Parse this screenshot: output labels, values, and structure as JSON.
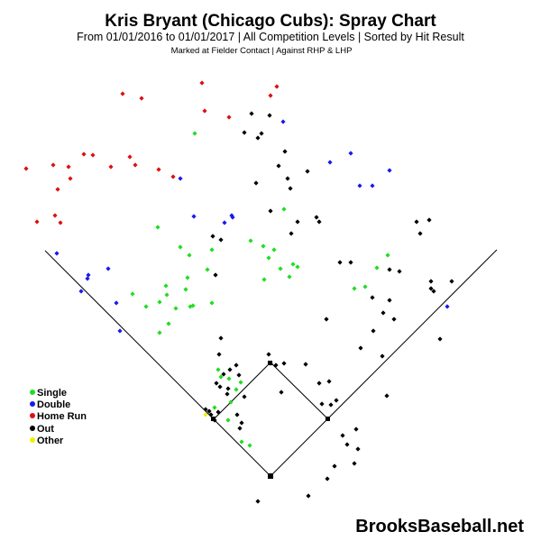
{
  "chart_data": {
    "type": "scatter",
    "title": "Kris Bryant (Chicago Cubs): Spray Chart",
    "subtitle": "From 01/01/2016 to 01/01/2017 | All Competition Levels | Sorted by Hit Result",
    "subtitle2": "Marked at Fielder Contact |   Against RHP & LHP",
    "watermark": "BrooksBaseball.net",
    "legend_placement": "bottom-left",
    "legend": [
      {
        "label": "Single",
        "color": "#22dd22"
      },
      {
        "label": "Double",
        "color": "#1a1aee"
      },
      {
        "label": "Home Run",
        "color": "#dd1111"
      },
      {
        "label": "Out",
        "color": "#000000"
      },
      {
        "label": "Other",
        "color": "#f0f000"
      }
    ],
    "grid": false,
    "series": [
      {
        "name": "Single",
        "color": "#22dd22",
        "points": [
          [
            216,
            148
          ],
          [
            315,
            232
          ],
          [
            175,
            252
          ],
          [
            200,
            274
          ],
          [
            278,
            267
          ],
          [
            292,
            273
          ],
          [
            304,
            277
          ],
          [
            235,
            277
          ],
          [
            210,
            283
          ],
          [
            298,
            286
          ],
          [
            325,
            293
          ],
          [
            311,
            298
          ],
          [
            330,
            296
          ],
          [
            230,
            299
          ],
          [
            208,
            308
          ],
          [
            293,
            310
          ],
          [
            321,
            307
          ],
          [
            184,
            317
          ],
          [
            147,
            326
          ],
          [
            185,
            327
          ],
          [
            206,
            321
          ],
          [
            177,
            335
          ],
          [
            162,
            340
          ],
          [
            195,
            342
          ],
          [
            211,
            340
          ],
          [
            214,
            339
          ],
          [
            235,
            336
          ],
          [
            187,
            359
          ],
          [
            177,
            369
          ],
          [
            418,
            297
          ],
          [
            405,
            318
          ],
          [
            393,
            320
          ],
          [
            430,
            283
          ],
          [
            242,
            410
          ],
          [
            245,
            418
          ],
          [
            254,
            420
          ],
          [
            267,
            424
          ],
          [
            262,
            432
          ],
          [
            256,
            446
          ],
          [
            238,
            452
          ],
          [
            253,
            466
          ],
          [
            234,
            460
          ],
          [
            268,
            490
          ],
          [
            277,
            494
          ]
        ]
      },
      {
        "name": "Double",
        "color": "#1a1aee",
        "points": [
          [
            314,
            135
          ],
          [
            200,
            198
          ],
          [
            215,
            240
          ],
          [
            249,
            247
          ],
          [
            257,
            239
          ],
          [
            258,
            241
          ],
          [
            366,
            180
          ],
          [
            389,
            170
          ],
          [
            432,
            189
          ],
          [
            399,
            206
          ],
          [
            413,
            206
          ],
          [
            63,
            281
          ],
          [
            98,
            305
          ],
          [
            97,
            309
          ],
          [
            120,
            298
          ],
          [
            90,
            323
          ],
          [
            129,
            336
          ],
          [
            133,
            367
          ],
          [
            496,
            340
          ]
        ]
      },
      {
        "name": "Home Run",
        "color": "#dd1111",
        "points": [
          [
            224,
            92
          ],
          [
            307,
            96
          ],
          [
            300,
            106
          ],
          [
            136,
            104
          ],
          [
            157,
            109
          ],
          [
            227,
            123
          ],
          [
            254,
            130
          ],
          [
            29,
            187
          ],
          [
            59,
            183
          ],
          [
            76,
            185
          ],
          [
            78,
            198
          ],
          [
            93,
            171
          ],
          [
            103,
            172
          ],
          [
            123,
            185
          ],
          [
            144,
            174
          ],
          [
            150,
            183
          ],
          [
            176,
            188
          ],
          [
            192,
            196
          ],
          [
            64,
            210
          ],
          [
            61,
            239
          ],
          [
            41,
            246
          ],
          [
            67,
            247
          ]
        ]
      },
      {
        "name": "Out",
        "color": "#000000",
        "points": [
          [
            279,
            126
          ],
          [
            299,
            128
          ],
          [
            271,
            147
          ],
          [
            290,
            148
          ],
          [
            286,
            153
          ],
          [
            316,
            168
          ],
          [
            309,
            184
          ],
          [
            341,
            190
          ],
          [
            319,
            198
          ],
          [
            322,
            209
          ],
          [
            284,
            203
          ],
          [
            300,
            234
          ],
          [
            351,
            241
          ],
          [
            330,
            246
          ],
          [
            354,
            246
          ],
          [
            323,
            259
          ],
          [
            236,
            262
          ],
          [
            245,
            266
          ],
          [
            239,
            305
          ],
          [
            462,
            246
          ],
          [
            466,
            259
          ],
          [
            476,
            244
          ],
          [
            377,
            291
          ],
          [
            389,
            291
          ],
          [
            432,
            299
          ],
          [
            443,
            301
          ],
          [
            478,
            312
          ],
          [
            478,
            320
          ],
          [
            481,
            323
          ],
          [
            501,
            312
          ],
          [
            413,
            330
          ],
          [
            432,
            333
          ],
          [
            425,
            347
          ],
          [
            437,
            354
          ],
          [
            414,
            367
          ],
          [
            400,
            386
          ],
          [
            362,
            354
          ],
          [
            488,
            376
          ],
          [
            424,
            395
          ],
          [
            298,
            393
          ],
          [
            315,
            403
          ],
          [
            306,
            405
          ],
          [
            339,
            404
          ],
          [
            300,
            403
          ],
          [
            245,
            375
          ],
          [
            243,
            393
          ],
          [
            262,
            405
          ],
          [
            255,
            410
          ],
          [
            248,
            415
          ],
          [
            265,
            416
          ],
          [
            240,
            425
          ],
          [
            244,
            429
          ],
          [
            253,
            431
          ],
          [
            271,
            440
          ],
          [
            252,
            437
          ],
          [
            263,
            460
          ],
          [
            242,
            457
          ],
          [
            228,
            454
          ],
          [
            232,
            456
          ],
          [
            234,
            460
          ],
          [
            238,
            466
          ],
          [
            268,
            469
          ],
          [
            266,
            475
          ],
          [
            312,
            435
          ],
          [
            354,
            425
          ],
          [
            365,
            423
          ],
          [
            357,
            448
          ],
          [
            367,
            449
          ],
          [
            373,
            444
          ],
          [
            429,
            439
          ],
          [
            380,
            483
          ],
          [
            385,
            493
          ],
          [
            395,
            476
          ],
          [
            397,
            498
          ],
          [
            371,
            517
          ],
          [
            393,
            514
          ],
          [
            363,
            531
          ],
          [
            342,
            550
          ],
          [
            286,
            556
          ]
        ]
      },
      {
        "name": "Other",
        "color": "#f0f000",
        "points": [
          [
            228,
            460
          ]
        ]
      }
    ]
  }
}
